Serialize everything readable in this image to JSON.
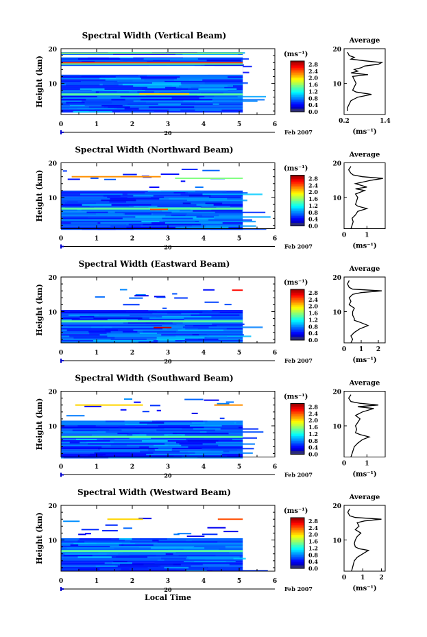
{
  "chart_data": [
    {
      "type": "heatmap",
      "title": "Spectral Width (Vertical Beam)",
      "ylabel": "Height (km)",
      "xticks": [
        "0",
        "1",
        "2",
        "3",
        "4",
        "5",
        "6"
      ],
      "yticks": [
        "10",
        "20"
      ],
      "xlim": [
        0,
        6
      ],
      "ylim": [
        1,
        20
      ],
      "date_marker": "20",
      "date_label": "Feb 2007",
      "colorbar": {
        "unit": "(ms⁻¹)",
        "ticks": [
          "0.0",
          "0.4",
          "0.8",
          "1.2",
          "1.6",
          "2.0",
          "2.4",
          "2.8"
        ],
        "range": [
          0,
          3.0
        ]
      },
      "data_coverage": {
        "x": [
          0,
          5.1
        ],
        "y": [
          2,
          19
        ]
      },
      "bands": [
        {
          "y": 18.7,
          "t": 0.4,
          "v": 1.6,
          "x0": 0.0,
          "x1": 5.1
        },
        {
          "y": 16.0,
          "t": 0.3,
          "v": 2.4,
          "x0": 0.0,
          "x1": 5.1
        },
        {
          "y": 15.6,
          "t": 0.3,
          "v": 1.4,
          "x0": 0.0,
          "x1": 5.1
        },
        {
          "y": 6.8,
          "t": 0.6,
          "v": 1.4,
          "x0": 0.0,
          "x1": 5.1
        },
        {
          "y": 7.0,
          "t": 0.3,
          "v": 2.0,
          "x0": 2.2,
          "x1": 3.6
        }
      ],
      "gaps": [
        {
          "y0": 17.5,
          "y1": 18.2,
          "x0": 0.0,
          "x1": 5.1
        },
        {
          "y0": 12.5,
          "y1": 15.0,
          "x0": 0.0,
          "x1": 5.1
        }
      ],
      "average": {
        "title": "Average",
        "xlabel": "(ms⁻¹)",
        "xticks": [
          "0.2",
          "1.4"
        ],
        "xlim": [
          0.2,
          1.4
        ],
        "height": [
          2,
          3,
          4,
          5,
          6,
          6.8,
          7.5,
          8,
          9,
          10,
          11,
          12,
          12.5,
          13,
          13.5,
          14,
          14.5,
          15,
          15.5,
          16,
          16.5,
          17,
          17.5,
          18,
          19
        ],
        "value": [
          0.3,
          0.3,
          0.35,
          0.4,
          0.6,
          1.0,
          0.55,
          0.45,
          0.5,
          0.55,
          0.5,
          0.45,
          0.9,
          0.4,
          0.6,
          0.5,
          0.7,
          0.8,
          1.2,
          1.3,
          0.8,
          0.4,
          0.5,
          0.35,
          0.3
        ]
      }
    },
    {
      "type": "heatmap",
      "title": "Spectral Width (Northward Beam)",
      "ylabel": "Height (km)",
      "xticks": [
        "0",
        "1",
        "2",
        "3",
        "4",
        "5",
        "6"
      ],
      "yticks": [
        "10",
        "20"
      ],
      "xlim": [
        0,
        6
      ],
      "ylim": [
        1,
        20
      ],
      "date_marker": "20",
      "date_label": "Feb 2007",
      "colorbar": {
        "unit": "(ms⁻¹)",
        "ticks": [
          "0.0",
          "0.4",
          "0.8",
          "1.2",
          "1.6",
          "2.0",
          "2.4",
          "2.8"
        ],
        "range": [
          0,
          3.0
        ]
      },
      "data_coverage": {
        "x": [
          0,
          5.1
        ],
        "y": [
          1,
          12
        ]
      },
      "bands": [
        {
          "y": 16.0,
          "t": 0.4,
          "v": 2.2,
          "x0": 0.3,
          "x1": 2.8
        },
        {
          "y": 15.6,
          "t": 0.3,
          "v": 1.5,
          "x0": 3.2,
          "x1": 5.1
        },
        {
          "y": 6.8,
          "t": 0.6,
          "v": 1.4,
          "x0": 0.0,
          "x1": 5.1
        },
        {
          "y": 6.6,
          "t": 0.3,
          "v": 2.4,
          "x0": 2.5,
          "x1": 3.0
        }
      ],
      "gaps": [],
      "average": {
        "title": "Average",
        "xlabel": "(ms⁻¹)",
        "xticks": [
          "0",
          "1"
        ],
        "xlim": [
          0,
          1.8
        ],
        "height": [
          1,
          2,
          3,
          4,
          5,
          6,
          6.8,
          7.5,
          8,
          9,
          10,
          11,
          12,
          12.5,
          13,
          14,
          15,
          15.5,
          16,
          16.5,
          17,
          18,
          19
        ],
        "value": [
          0.3,
          0.35,
          0.4,
          0.35,
          0.5,
          0.6,
          1.0,
          0.6,
          0.5,
          0.55,
          0.6,
          0.5,
          0.9,
          0.5,
          1.0,
          0.5,
          1.2,
          1.7,
          0.8,
          0.4,
          0.3,
          0.2,
          0.3
        ]
      }
    },
    {
      "type": "heatmap",
      "title": "Spectral Width (Eastward Beam)",
      "ylabel": "Height (km)",
      "xticks": [
        "0",
        "1",
        "2",
        "3",
        "4",
        "5",
        "6"
      ],
      "yticks": [
        "10",
        "20"
      ],
      "xlim": [
        0,
        6
      ],
      "ylim": [
        1,
        20
      ],
      "date_marker": "20",
      "date_label": "Feb 2007",
      "colorbar": {
        "unit": "(ms⁻¹)",
        "ticks": [
          "0.0",
          "0.4",
          "0.8",
          "1.2",
          "1.6",
          "2.0",
          "2.4",
          "2.8"
        ],
        "range": [
          0,
          3.0
        ]
      },
      "data_coverage": {
        "x": [
          0,
          5.1
        ],
        "y": [
          1,
          10.5
        ]
      },
      "bands": [
        {
          "y": 16.2,
          "t": 0.4,
          "v": 2.6,
          "x0": 4.8,
          "x1": 5.1
        },
        {
          "y": 7.2,
          "t": 0.6,
          "v": 1.4,
          "x0": 0.0,
          "x1": 5.1
        },
        {
          "y": 5.4,
          "t": 0.4,
          "v": 2.8,
          "x0": 2.6,
          "x1": 3.1
        }
      ],
      "gaps": [],
      "average": {
        "title": "Average",
        "xlabel": "(ms⁻¹)",
        "xticks": [
          "0",
          "1",
          "2"
        ],
        "xlim": [
          0,
          2.4
        ],
        "height": [
          1,
          2,
          3,
          4,
          5,
          6,
          7,
          7.5,
          8,
          9,
          10,
          11,
          12,
          13,
          14,
          15,
          15.5,
          16,
          16.5,
          17,
          18,
          19
        ],
        "value": [
          0.4,
          0.5,
          0.4,
          0.6,
          0.9,
          1.4,
          0.9,
          0.6,
          0.6,
          0.5,
          0.5,
          0.6,
          0.3,
          0.4,
          0.3,
          0.5,
          1.0,
          2.2,
          0.5,
          0.3,
          0.2,
          0.3
        ]
      }
    },
    {
      "type": "heatmap",
      "title": "Spectral Width (Southward Beam)",
      "ylabel": "Height (km)",
      "xticks": [
        "0",
        "1",
        "2",
        "3",
        "4",
        "5",
        "6"
      ],
      "yticks": [
        "10",
        "20"
      ],
      "xlim": [
        0,
        6
      ],
      "ylim": [
        1,
        20
      ],
      "date_marker": "20",
      "date_label": "Feb 2007",
      "colorbar": {
        "unit": "(ms⁻¹)",
        "ticks": [
          "0.0",
          "0.4",
          "0.8",
          "1.2",
          "1.6",
          "2.0",
          "2.4",
          "2.8"
        ],
        "range": [
          0,
          3.0
        ]
      },
      "data_coverage": {
        "x": [
          0,
          5.1
        ],
        "y": [
          1,
          11.5
        ]
      },
      "bands": [
        {
          "y": 16.0,
          "t": 0.4,
          "v": 2.0,
          "x0": 0.4,
          "x1": 2.3
        },
        {
          "y": 16.0,
          "t": 0.4,
          "v": 2.2,
          "x0": 4.3,
          "x1": 5.1
        },
        {
          "y": 6.8,
          "t": 0.6,
          "v": 1.4,
          "x0": 0.0,
          "x1": 5.1
        }
      ],
      "gaps": [],
      "average": {
        "title": "Average",
        "xlabel": "(ms⁻¹)",
        "xticks": [
          "0",
          "1"
        ],
        "xlim": [
          0,
          1.8
        ],
        "height": [
          1,
          2,
          3,
          4,
          5,
          6,
          6.8,
          7.5,
          8,
          9,
          10,
          11,
          12,
          13,
          14,
          15,
          15.5,
          16,
          16.5,
          17,
          18,
          19
        ],
        "value": [
          0.3,
          0.35,
          0.4,
          0.45,
          0.6,
          0.8,
          1.1,
          0.7,
          0.5,
          0.55,
          0.5,
          0.6,
          0.7,
          0.5,
          0.8,
          1.3,
          0.6,
          1.5,
          0.7,
          0.3,
          0.2,
          0.3
        ]
      }
    },
    {
      "type": "heatmap",
      "title": "Spectral Width (Westward Beam)",
      "ylabel": "Height (km)",
      "xticks": [
        "0",
        "1",
        "2",
        "3",
        "4",
        "5",
        "6"
      ],
      "yticks": [
        "10",
        "20"
      ],
      "xlim": [
        0,
        6
      ],
      "ylim": [
        1,
        20
      ],
      "date_marker": "20",
      "date_label": "Feb 2007",
      "xlabel": "Local Time",
      "colorbar": {
        "unit": "(ms⁻¹)",
        "ticks": [
          "0.0",
          "0.4",
          "0.8",
          "1.2",
          "1.6",
          "2.0",
          "2.4",
          "2.8"
        ],
        "range": [
          0,
          3.0
        ]
      },
      "data_coverage": {
        "x": [
          0,
          5.1
        ],
        "y": [
          1,
          10.5
        ]
      },
      "bands": [
        {
          "y": 16.0,
          "t": 0.4,
          "v": 2.0,
          "x0": 1.3,
          "x1": 2.3
        },
        {
          "y": 16.0,
          "t": 0.4,
          "v": 2.4,
          "x0": 4.4,
          "x1": 5.1
        },
        {
          "y": 6.8,
          "t": 0.6,
          "v": 1.4,
          "x0": 0.0,
          "x1": 5.1
        }
      ],
      "gaps": [],
      "average": {
        "title": "Average",
        "xlabel": "(ms⁻¹)",
        "xticks": [
          "0",
          "1",
          "2"
        ],
        "xlim": [
          0,
          2.2
        ],
        "height": [
          1,
          2,
          3,
          4,
          5,
          6,
          7,
          7.5,
          8,
          9,
          10,
          11,
          12,
          13,
          14,
          15,
          15.5,
          16,
          16.5,
          17,
          18,
          19
        ],
        "value": [
          0.4,
          0.45,
          0.5,
          0.55,
          0.7,
          1.0,
          1.3,
          0.8,
          0.6,
          0.55,
          0.6,
          0.7,
          0.9,
          0.6,
          0.8,
          0.7,
          1.1,
          2.0,
          0.6,
          0.3,
          0.2,
          0.3
        ]
      }
    }
  ]
}
